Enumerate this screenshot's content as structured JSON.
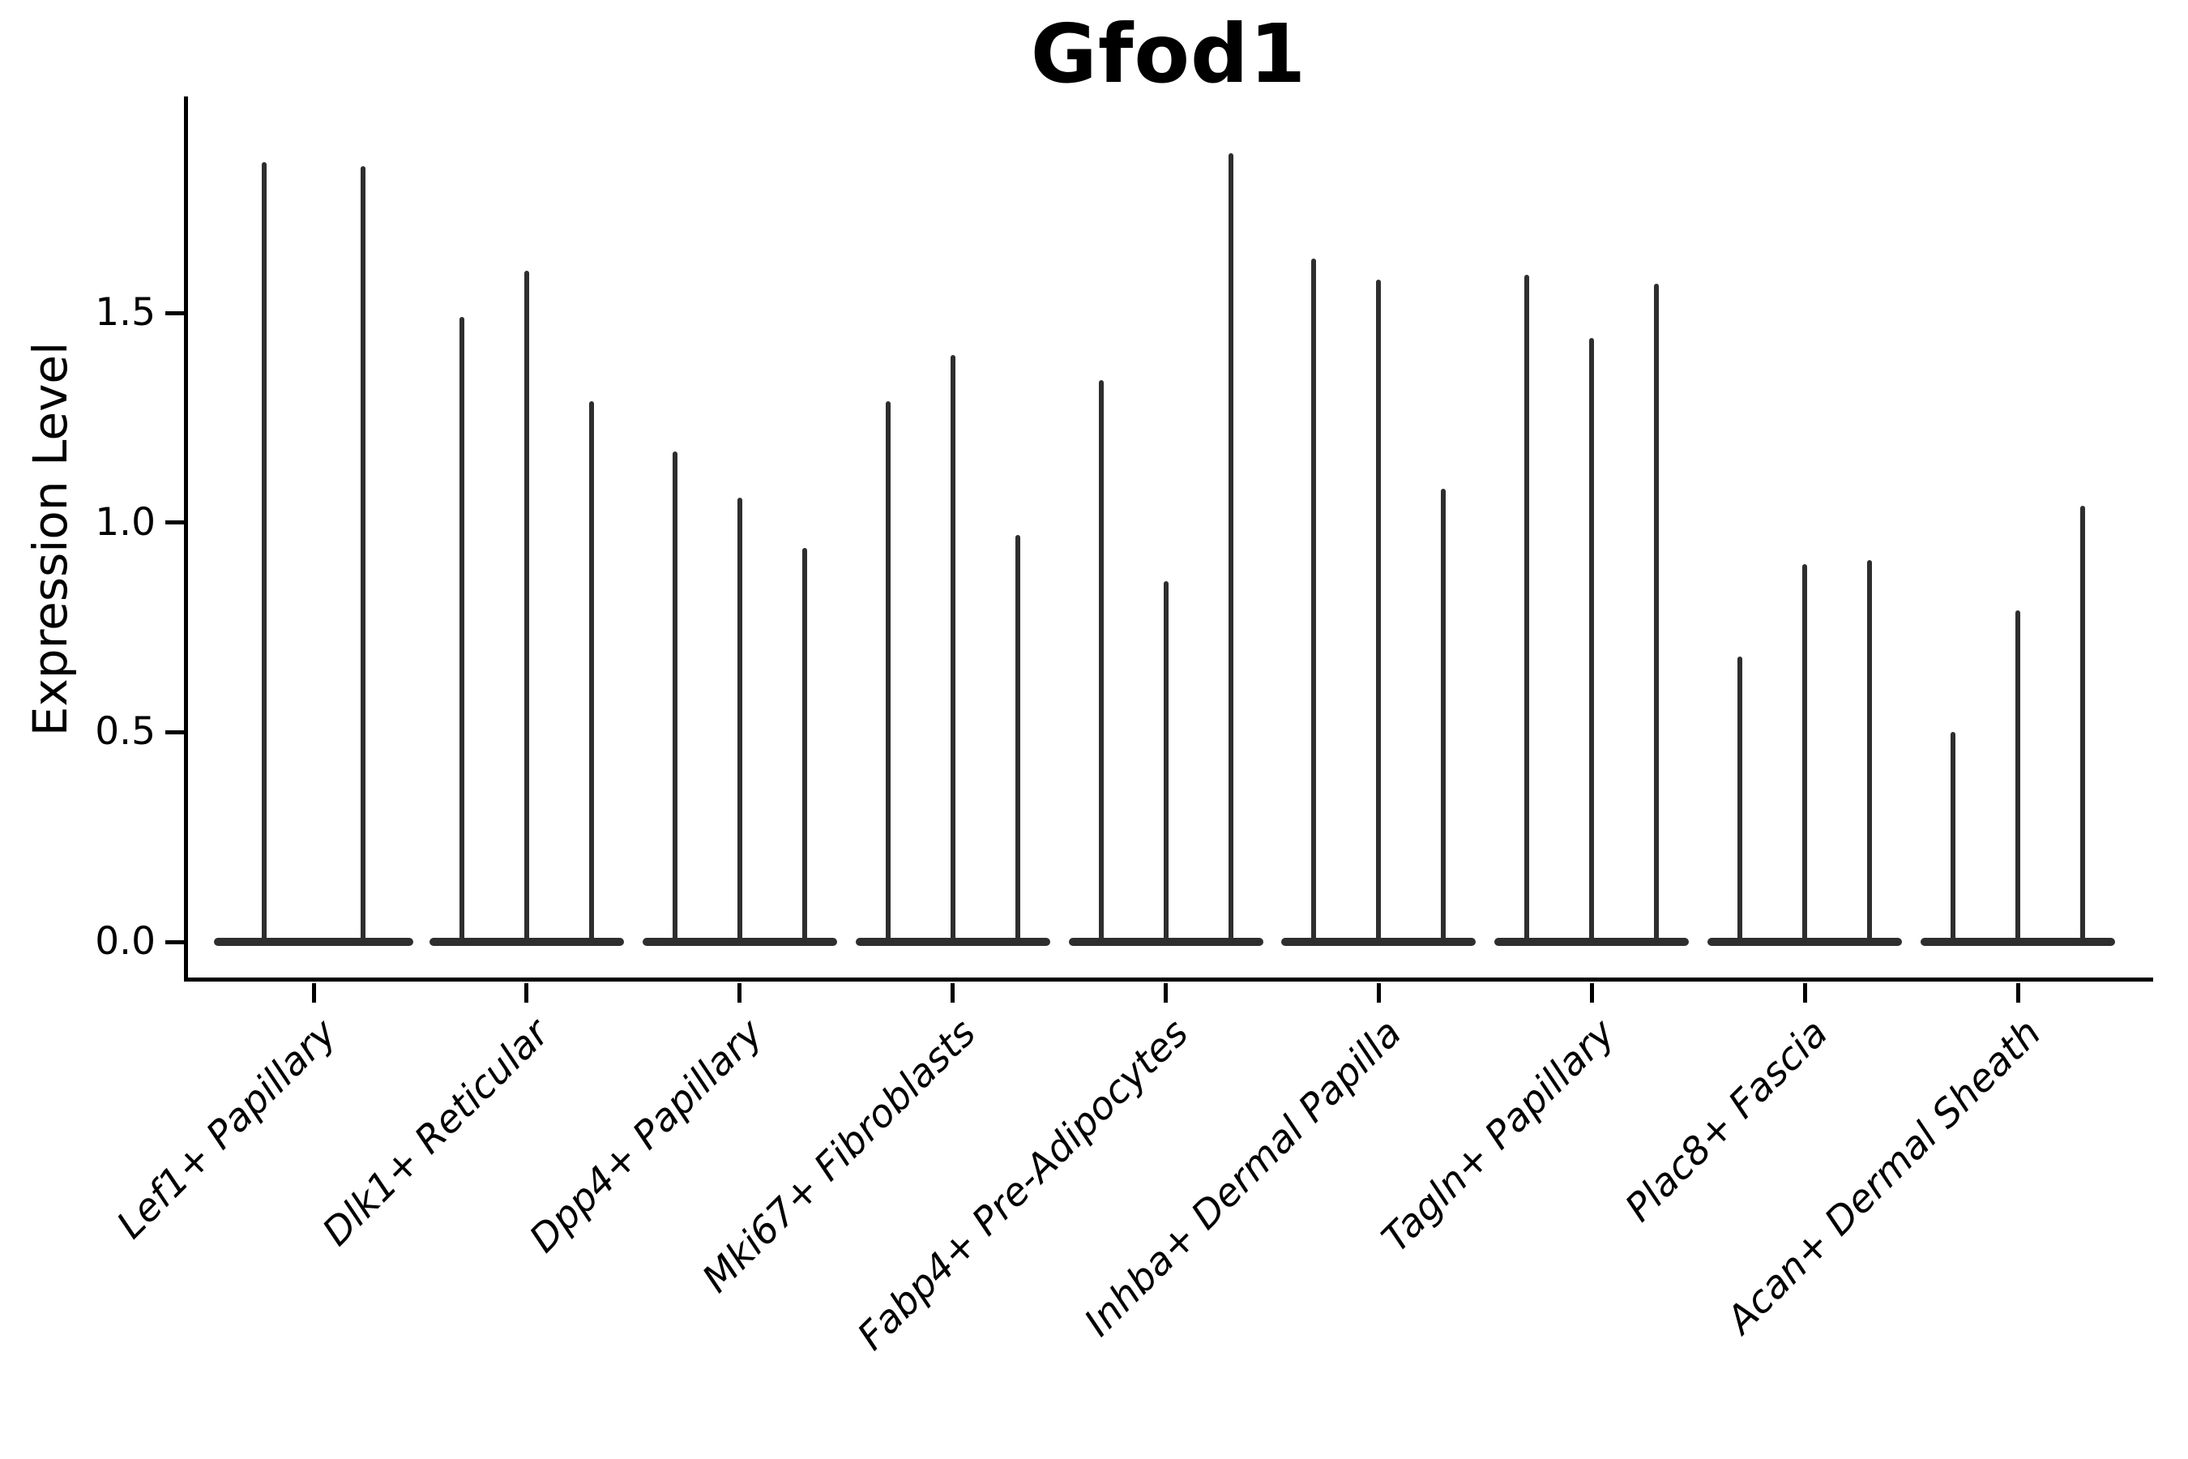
{
  "chart_data": {
    "type": "violin",
    "title": "Gfod1",
    "ylabel": "Expression Level",
    "xlabel": "",
    "ytick_labels": [
      "0.0",
      "0.5",
      "1.0",
      "1.5"
    ],
    "ytick_values": [
      0.0,
      0.5,
      1.0,
      1.5
    ],
    "ylim": [
      -0.1,
      2.02
    ],
    "grid": false,
    "legend": "none",
    "categories": [
      "Lef1+ Papillary",
      "Dlk1+ Reticular",
      "Dpp4+ Papillary",
      "Mki67+ Fibroblasts",
      "Fabp4+ Pre-Adipocytes",
      "Inhba+ Dermal Papilla",
      "Tagln+ Papillary",
      "Plac8+ Fascia",
      "Acan+ Dermal Sheath"
    ],
    "violins_per_category": [
      2,
      3,
      3,
      3,
      3,
      3,
      3,
      3,
      3
    ],
    "series_note": "Each category holds 2-3 needle-thin violins: density mass sits at expression 0 (flat pancake on the baseline) with a hair-thin spike reaching the maximum expression value listed below.",
    "spike_maxima": [
      [
        1.86,
        1.85
      ],
      [
        1.49,
        1.6,
        1.29
      ],
      [
        1.17,
        1.06,
        0.94
      ],
      [
        1.29,
        1.4,
        0.97
      ],
      [
        1.34,
        0.86,
        1.88
      ],
      [
        1.63,
        1.58,
        1.08
      ],
      [
        1.59,
        1.44,
        1.57
      ],
      [
        0.68,
        0.9,
        0.91
      ],
      [
        0.5,
        0.79,
        1.04
      ]
    ],
    "colors": {
      "axis": "#000000",
      "text": "#000000",
      "violin": "#2e2e2e",
      "background": "#ffffff"
    }
  }
}
